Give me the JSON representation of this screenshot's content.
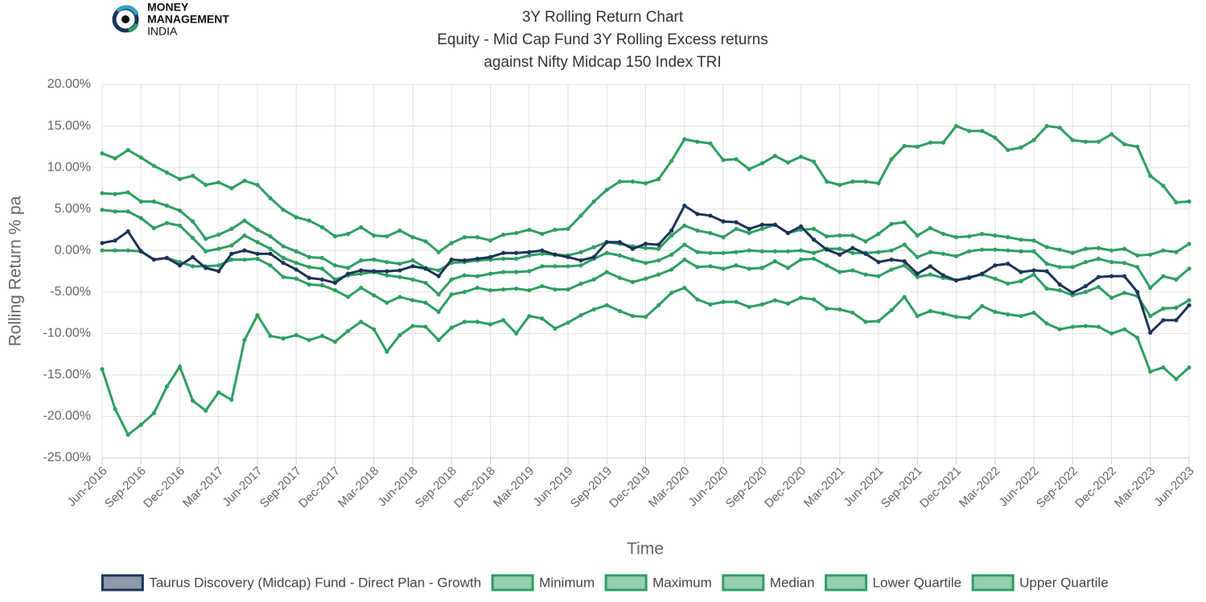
{
  "logo": {
    "lines": [
      "MONEY",
      "MANAGEMENT",
      "INDIA"
    ]
  },
  "chart_data": {
    "type": "line",
    "title": "3Y Rolling Return Chart",
    "subtitle": [
      "Equity - Mid Cap Fund 3Y Rolling Excess returns",
      "against Nifty Midcap 150 Index TRI"
    ],
    "x_label": "Time",
    "y_label": "Rolling Return % pa",
    "categories": [
      "Jun-2016",
      null,
      null,
      "Sep-2016",
      null,
      null,
      "Dec-2016",
      null,
      null,
      "Mar-2017",
      null,
      null,
      "Jun-2017",
      null,
      null,
      "Sep-2017",
      null,
      null,
      "Dec-2017",
      null,
      null,
      "Mar-2018",
      null,
      null,
      "Jun-2018",
      null,
      null,
      "Sep-2018",
      null,
      null,
      "Dec-2018",
      null,
      null,
      "Mar-2019",
      null,
      null,
      "Jun-2019",
      null,
      null,
      "Sep-2019",
      null,
      null,
      "Dec-2019",
      null,
      null,
      "Mar-2020",
      null,
      null,
      "Jun-2020",
      null,
      null,
      "Sep-2020",
      null,
      null,
      "Dec-2020",
      null,
      null,
      "Mar-2021",
      null,
      null,
      "Jun-2021",
      null,
      null,
      "Sep-2021",
      null,
      null,
      "Dec-2021",
      null,
      null,
      "Mar-2022",
      null,
      null,
      "Jun-2022",
      null,
      null,
      "Sep-2022",
      null,
      null,
      "Dec-2022",
      null,
      null,
      "Mar-2023",
      null,
      null,
      "Jun-2023"
    ],
    "ylim": [
      -25,
      20
    ],
    "yticks": [
      {
        "value": 20,
        "label": "20.00%"
      },
      {
        "value": 15,
        "label": "15.00%"
      },
      {
        "value": 10,
        "label": "10.00%"
      },
      {
        "value": 5,
        "label": "5.00%"
      },
      {
        "value": 0,
        "label": "0.00%"
      },
      {
        "value": -5,
        "label": "-5.00%"
      },
      {
        "value": -10,
        "label": "-10.00%"
      },
      {
        "value": -15,
        "label": "-15.00%"
      },
      {
        "value": -20,
        "label": "-20.00%"
      },
      {
        "value": -25,
        "label": "-25.00%"
      }
    ],
    "grid": true,
    "legend": "bottom",
    "series": [
      {
        "name": "Taurus Discovery (Midcap) Fund - Direct Plan - Growth",
        "color": "#1b3358",
        "values": [
          0.9,
          1.2,
          2.3,
          -0.1,
          -1.1,
          -0.9,
          -1.8,
          -0.8,
          -2.1,
          -2.5,
          -0.4,
          0.0,
          -0.4,
          -0.4,
          -1.5,
          -2.3,
          -3.3,
          -3.5,
          -3.9,
          -2.8,
          -2.4,
          -2.5,
          -2.5,
          -2.4,
          -1.9,
          -2.2,
          -3.1,
          -1.1,
          -1.2,
          -1.0,
          -0.8,
          -0.3,
          -0.3,
          -0.2,
          0.0,
          -0.5,
          -0.8,
          -1.2,
          -0.8,
          1.0,
          1.0,
          0.2,
          0.8,
          0.7,
          2.4,
          5.4,
          4.4,
          4.2,
          3.5,
          3.4,
          2.6,
          3.1,
          3.1,
          2.1,
          2.9,
          1.3,
          0.1,
          -0.5,
          0.3,
          -0.4,
          -1.4,
          -1.1,
          -1.3,
          -2.8,
          -1.9,
          -3.0,
          -3.6,
          -3.3,
          -2.8,
          -1.8,
          -1.6,
          -2.6,
          -2.4,
          -2.5,
          -4.1,
          -5.1,
          -4.3,
          -3.2,
          -3.1,
          -3.1,
          -5.0,
          -9.9,
          -8.4,
          -8.4,
          -6.6
        ]
      },
      {
        "name": "Minimum",
        "color": "#2e9e62",
        "values": [
          -14.3,
          -19.1,
          -22.2,
          -21.0,
          -19.6,
          -16.4,
          -14.0,
          -18.1,
          -19.3,
          -17.1,
          -18.0,
          -10.8,
          -7.8,
          -10.3,
          -10.6,
          -10.2,
          -10.8,
          -10.3,
          -11.0,
          -9.7,
          -8.6,
          -9.5,
          -12.2,
          -10.2,
          -9.1,
          -9.2,
          -10.8,
          -9.3,
          -8.6,
          -8.6,
          -8.9,
          -8.4,
          -10.0,
          -7.9,
          -8.2,
          -9.4,
          -8.7,
          -7.8,
          -7.1,
          -6.6,
          -7.3,
          -7.9,
          -8.0,
          -6.6,
          -5.1,
          -4.5,
          -5.9,
          -6.5,
          -6.2,
          -6.2,
          -6.8,
          -6.5,
          -6.0,
          -6.4,
          -5.7,
          -5.9,
          -7.0,
          -7.1,
          -7.5,
          -8.6,
          -8.5,
          -7.2,
          -5.6,
          -7.9,
          -7.3,
          -7.6,
          -8.0,
          -8.1,
          -6.7,
          -7.4,
          -7.7,
          -7.9,
          -7.5,
          -8.8,
          -9.5,
          -9.2,
          -9.1,
          -9.2,
          -10.0,
          -9.5,
          -10.5,
          -14.6,
          -14.1,
          -15.5,
          -14.1
        ]
      },
      {
        "name": "Maximum",
        "color": "#2e9e62",
        "values": [
          11.7,
          11.1,
          12.1,
          11.2,
          10.2,
          9.4,
          8.6,
          9.0,
          7.9,
          8.2,
          7.5,
          8.4,
          7.9,
          6.3,
          4.9,
          4.0,
          3.6,
          2.8,
          1.7,
          2.0,
          2.8,
          1.8,
          1.7,
          2.4,
          1.6,
          1.1,
          -0.2,
          0.9,
          1.6,
          1.6,
          1.2,
          1.9,
          2.1,
          2.5,
          2.0,
          2.5,
          2.6,
          4.2,
          5.9,
          7.3,
          8.3,
          8.3,
          8.1,
          8.6,
          10.8,
          13.4,
          13.1,
          12.9,
          10.9,
          11.0,
          9.8,
          10.5,
          11.4,
          10.6,
          11.3,
          10.7,
          8.3,
          7.9,
          8.3,
          8.3,
          8.1,
          11.0,
          12.6,
          12.5,
          13.0,
          13.0,
          15.0,
          14.4,
          14.4,
          13.6,
          12.1,
          12.4,
          13.3,
          15.0,
          14.8,
          13.3,
          13.1,
          13.1,
          14.0,
          12.8,
          12.5,
          9.0,
          7.8,
          5.8,
          5.9
        ]
      },
      {
        "name": "Median",
        "color": "#2e9e62",
        "values": [
          4.9,
          4.7,
          4.7,
          3.9,
          2.7,
          3.3,
          3.0,
          1.5,
          -0.1,
          0.2,
          0.6,
          1.8,
          1.0,
          0.2,
          -0.9,
          -1.5,
          -2.0,
          -2.2,
          -3.5,
          -3.0,
          -2.8,
          -2.6,
          -3.0,
          -3.2,
          -3.5,
          -3.9,
          -5.3,
          -3.5,
          -3.0,
          -3.1,
          -2.8,
          -2.6,
          -2.6,
          -2.5,
          -1.9,
          -1.9,
          -1.9,
          -1.8,
          -1.0,
          -0.3,
          -0.6,
          -1.1,
          -1.5,
          -1.2,
          -0.5,
          0.7,
          -0.2,
          -0.3,
          -0.3,
          -0.2,
          0.0,
          -0.1,
          -0.1,
          -0.1,
          0.0,
          -0.3,
          0.2,
          0.2,
          -0.3,
          -0.3,
          -0.2,
          0.0,
          0.7,
          -0.8,
          -0.2,
          -0.4,
          -0.7,
          -0.1,
          0.1,
          0.1,
          0.0,
          -0.1,
          -0.1,
          -1.6,
          -2.0,
          -2.0,
          -1.4,
          -1.0,
          -1.4,
          -1.5,
          -2.0,
          -4.5,
          -3.1,
          -3.5,
          -2.2
        ]
      },
      {
        "name": "Lower Quartile",
        "color": "#2e9e62",
        "values": [
          0.0,
          0.0,
          0.0,
          -0.1,
          -1.1,
          -0.9,
          -1.4,
          -1.9,
          -1.9,
          -1.8,
          -1.1,
          -1.1,
          -1.0,
          -1.8,
          -3.2,
          -3.4,
          -4.1,
          -4.2,
          -4.8,
          -5.6,
          -4.5,
          -5.4,
          -6.3,
          -5.6,
          -6.0,
          -6.3,
          -7.4,
          -5.3,
          -5.0,
          -4.5,
          -4.8,
          -4.7,
          -4.6,
          -4.8,
          -4.3,
          -4.7,
          -4.7,
          -4.0,
          -3.5,
          -2.6,
          -3.3,
          -3.8,
          -3.4,
          -2.9,
          -2.3,
          -1.1,
          -2.0,
          -1.9,
          -2.2,
          -1.8,
          -2.2,
          -2.1,
          -1.3,
          -2.1,
          -1.1,
          -1.0,
          -1.8,
          -2.6,
          -2.4,
          -2.9,
          -3.1,
          -2.3,
          -1.8,
          -3.2,
          -2.9,
          -3.3,
          -3.6,
          -3.2,
          -2.9,
          -3.4,
          -4.0,
          -3.7,
          -2.9,
          -4.6,
          -4.8,
          -5.4,
          -5.0,
          -4.4,
          -5.7,
          -5.1,
          -5.5,
          -7.9,
          -7.0,
          -6.9,
          -6.0
        ]
      },
      {
        "name": "Upper Quartile",
        "color": "#2e9e62",
        "values": [
          6.9,
          6.8,
          7.0,
          5.9,
          5.9,
          5.4,
          4.8,
          3.5,
          1.4,
          1.9,
          2.6,
          3.6,
          2.5,
          1.7,
          0.5,
          -0.1,
          -0.8,
          -0.9,
          -1.8,
          -2.1,
          -1.2,
          -1.1,
          -1.4,
          -1.6,
          -1.2,
          -2.1,
          -2.4,
          -1.5,
          -1.4,
          -1.2,
          -1.1,
          -1.0,
          -1.0,
          -0.6,
          -0.4,
          -0.5,
          -0.6,
          -0.2,
          0.4,
          1.0,
          0.8,
          0.5,
          0.3,
          0.2,
          1.8,
          3.0,
          2.4,
          2.1,
          1.6,
          2.6,
          2.1,
          2.6,
          3.1,
          2.1,
          2.5,
          2.6,
          1.7,
          1.8,
          1.8,
          1.1,
          2.0,
          3.2,
          3.4,
          1.8,
          2.7,
          2.0,
          1.6,
          1.7,
          2.0,
          1.8,
          1.6,
          1.3,
          1.2,
          0.4,
          0.1,
          -0.3,
          0.2,
          0.3,
          0.0,
          0.2,
          -0.6,
          -0.5,
          0.0,
          -0.2,
          0.8
        ]
      }
    ]
  }
}
